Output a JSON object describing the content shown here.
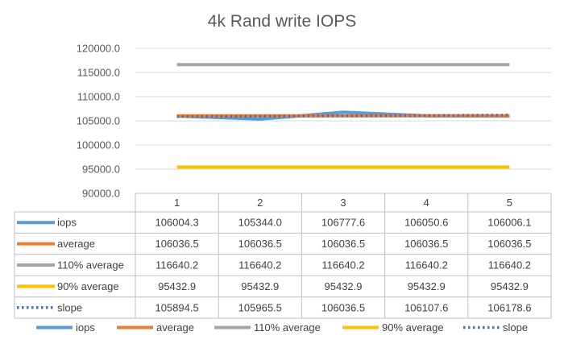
{
  "chart_data": {
    "type": "line",
    "title": "4k Rand write IOPS",
    "categories": [
      "1",
      "2",
      "3",
      "4",
      "5"
    ],
    "ylim": [
      90000,
      120000
    ],
    "y_ticks": [
      "90000.0",
      "95000.0",
      "100000.0",
      "105000.0",
      "110000.0",
      "115000.0",
      "120000.0"
    ],
    "grid": true,
    "legend_position": "bottom",
    "data_table": true,
    "series": [
      {
        "name": "iops",
        "values": [
          106004.3,
          105344.0,
          106777.6,
          106050.6,
          106006.1
        ],
        "labels": [
          "106004.3",
          "105344.0",
          "106777.6",
          "106050.6",
          "106006.1"
        ],
        "color": "#5B9BD5",
        "style": "solid"
      },
      {
        "name": "average",
        "values": [
          106036.5,
          106036.5,
          106036.5,
          106036.5,
          106036.5
        ],
        "labels": [
          "106036.5",
          "106036.5",
          "106036.5",
          "106036.5",
          "106036.5"
        ],
        "color": "#ED7D31",
        "style": "solid"
      },
      {
        "name": "110% average",
        "values": [
          116640.2,
          116640.2,
          116640.2,
          116640.2,
          116640.2
        ],
        "labels": [
          "116640.2",
          "116640.2",
          "116640.2",
          "116640.2",
          "116640.2"
        ],
        "color": "#A5A5A5",
        "style": "solid"
      },
      {
        "name": "90% average",
        "values": [
          95432.9,
          95432.9,
          95432.9,
          95432.9,
          95432.9
        ],
        "labels": [
          "95432.9",
          "95432.9",
          "95432.9",
          "95432.9",
          "95432.9"
        ],
        "color": "#FFC000",
        "style": "solid"
      },
      {
        "name": "slope",
        "values": [
          105894.5,
          105965.5,
          106036.5,
          106107.6,
          106178.6
        ],
        "labels": [
          "105894.5",
          "105965.5",
          "106036.5",
          "106107.6",
          "106178.6"
        ],
        "color": "#4472C4",
        "style": "dotted"
      }
    ]
  }
}
